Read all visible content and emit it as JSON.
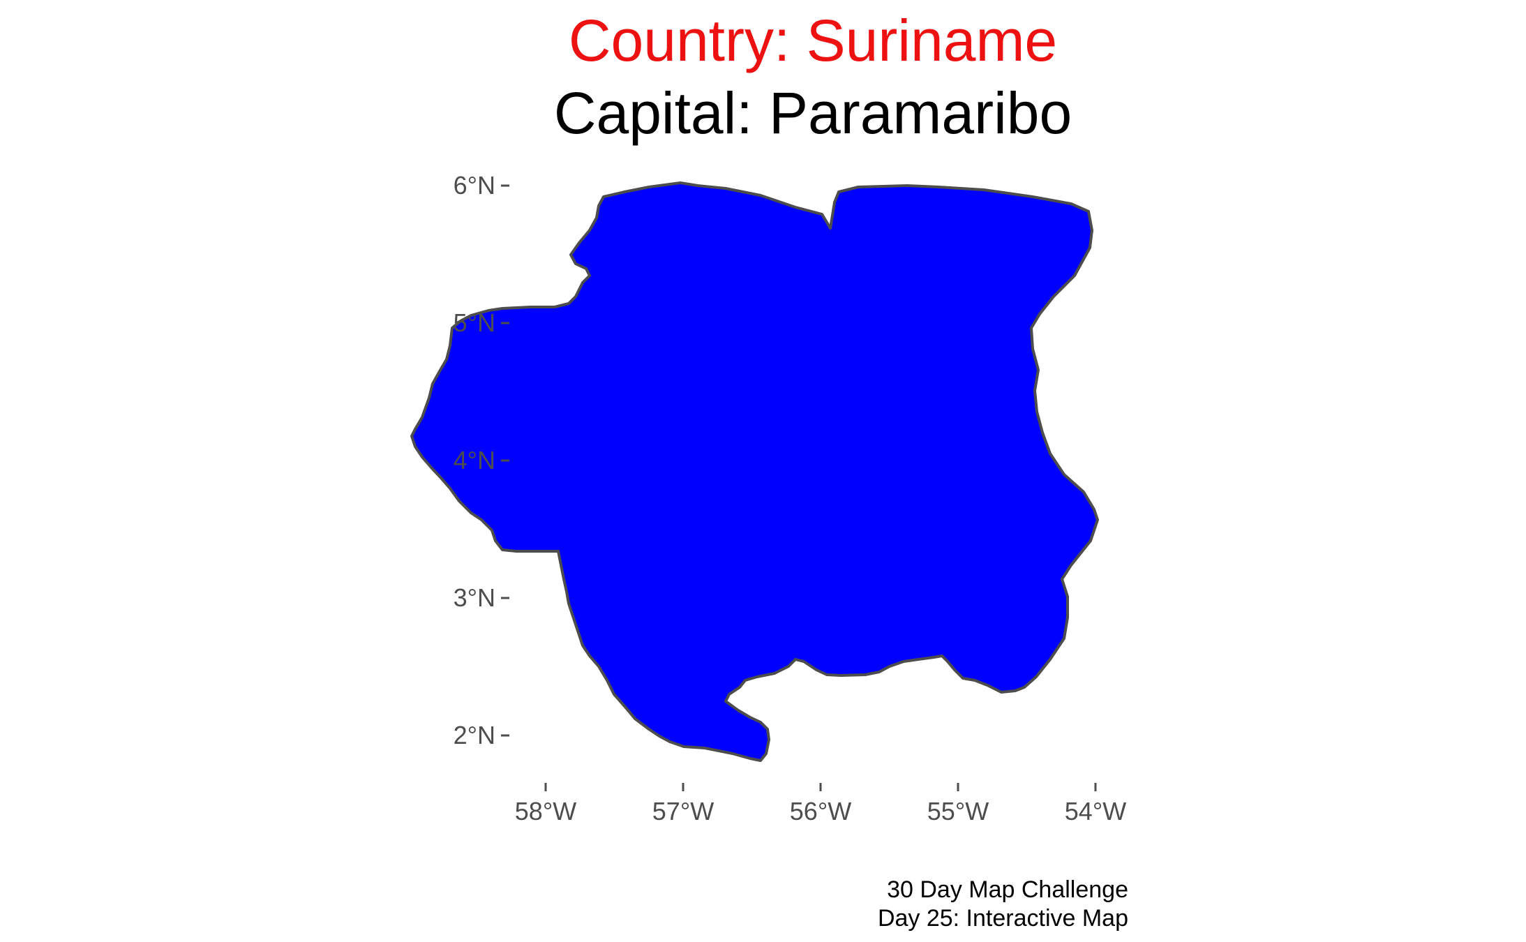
{
  "title": {
    "country": "Country: Suriname",
    "capital": "Capital: Paramaribo",
    "country_color": "#ee1111",
    "capital_color": "#000000"
  },
  "map": {
    "country": "Suriname",
    "fill_color": "#0000ff",
    "border_color": "#4d4d4d",
    "axis_color": "#4d4d4d",
    "lat_ticks": [
      "6°N",
      "5°N",
      "4°N",
      "3°N",
      "2°N"
    ],
    "lon_ticks": [
      "58°W",
      "57°W",
      "56°W",
      "55°W",
      "54°W"
    ],
    "grid": false
  },
  "caption": {
    "line1": "30 Day Map Challenge",
    "line2": "Day 25: Interactive Map"
  }
}
